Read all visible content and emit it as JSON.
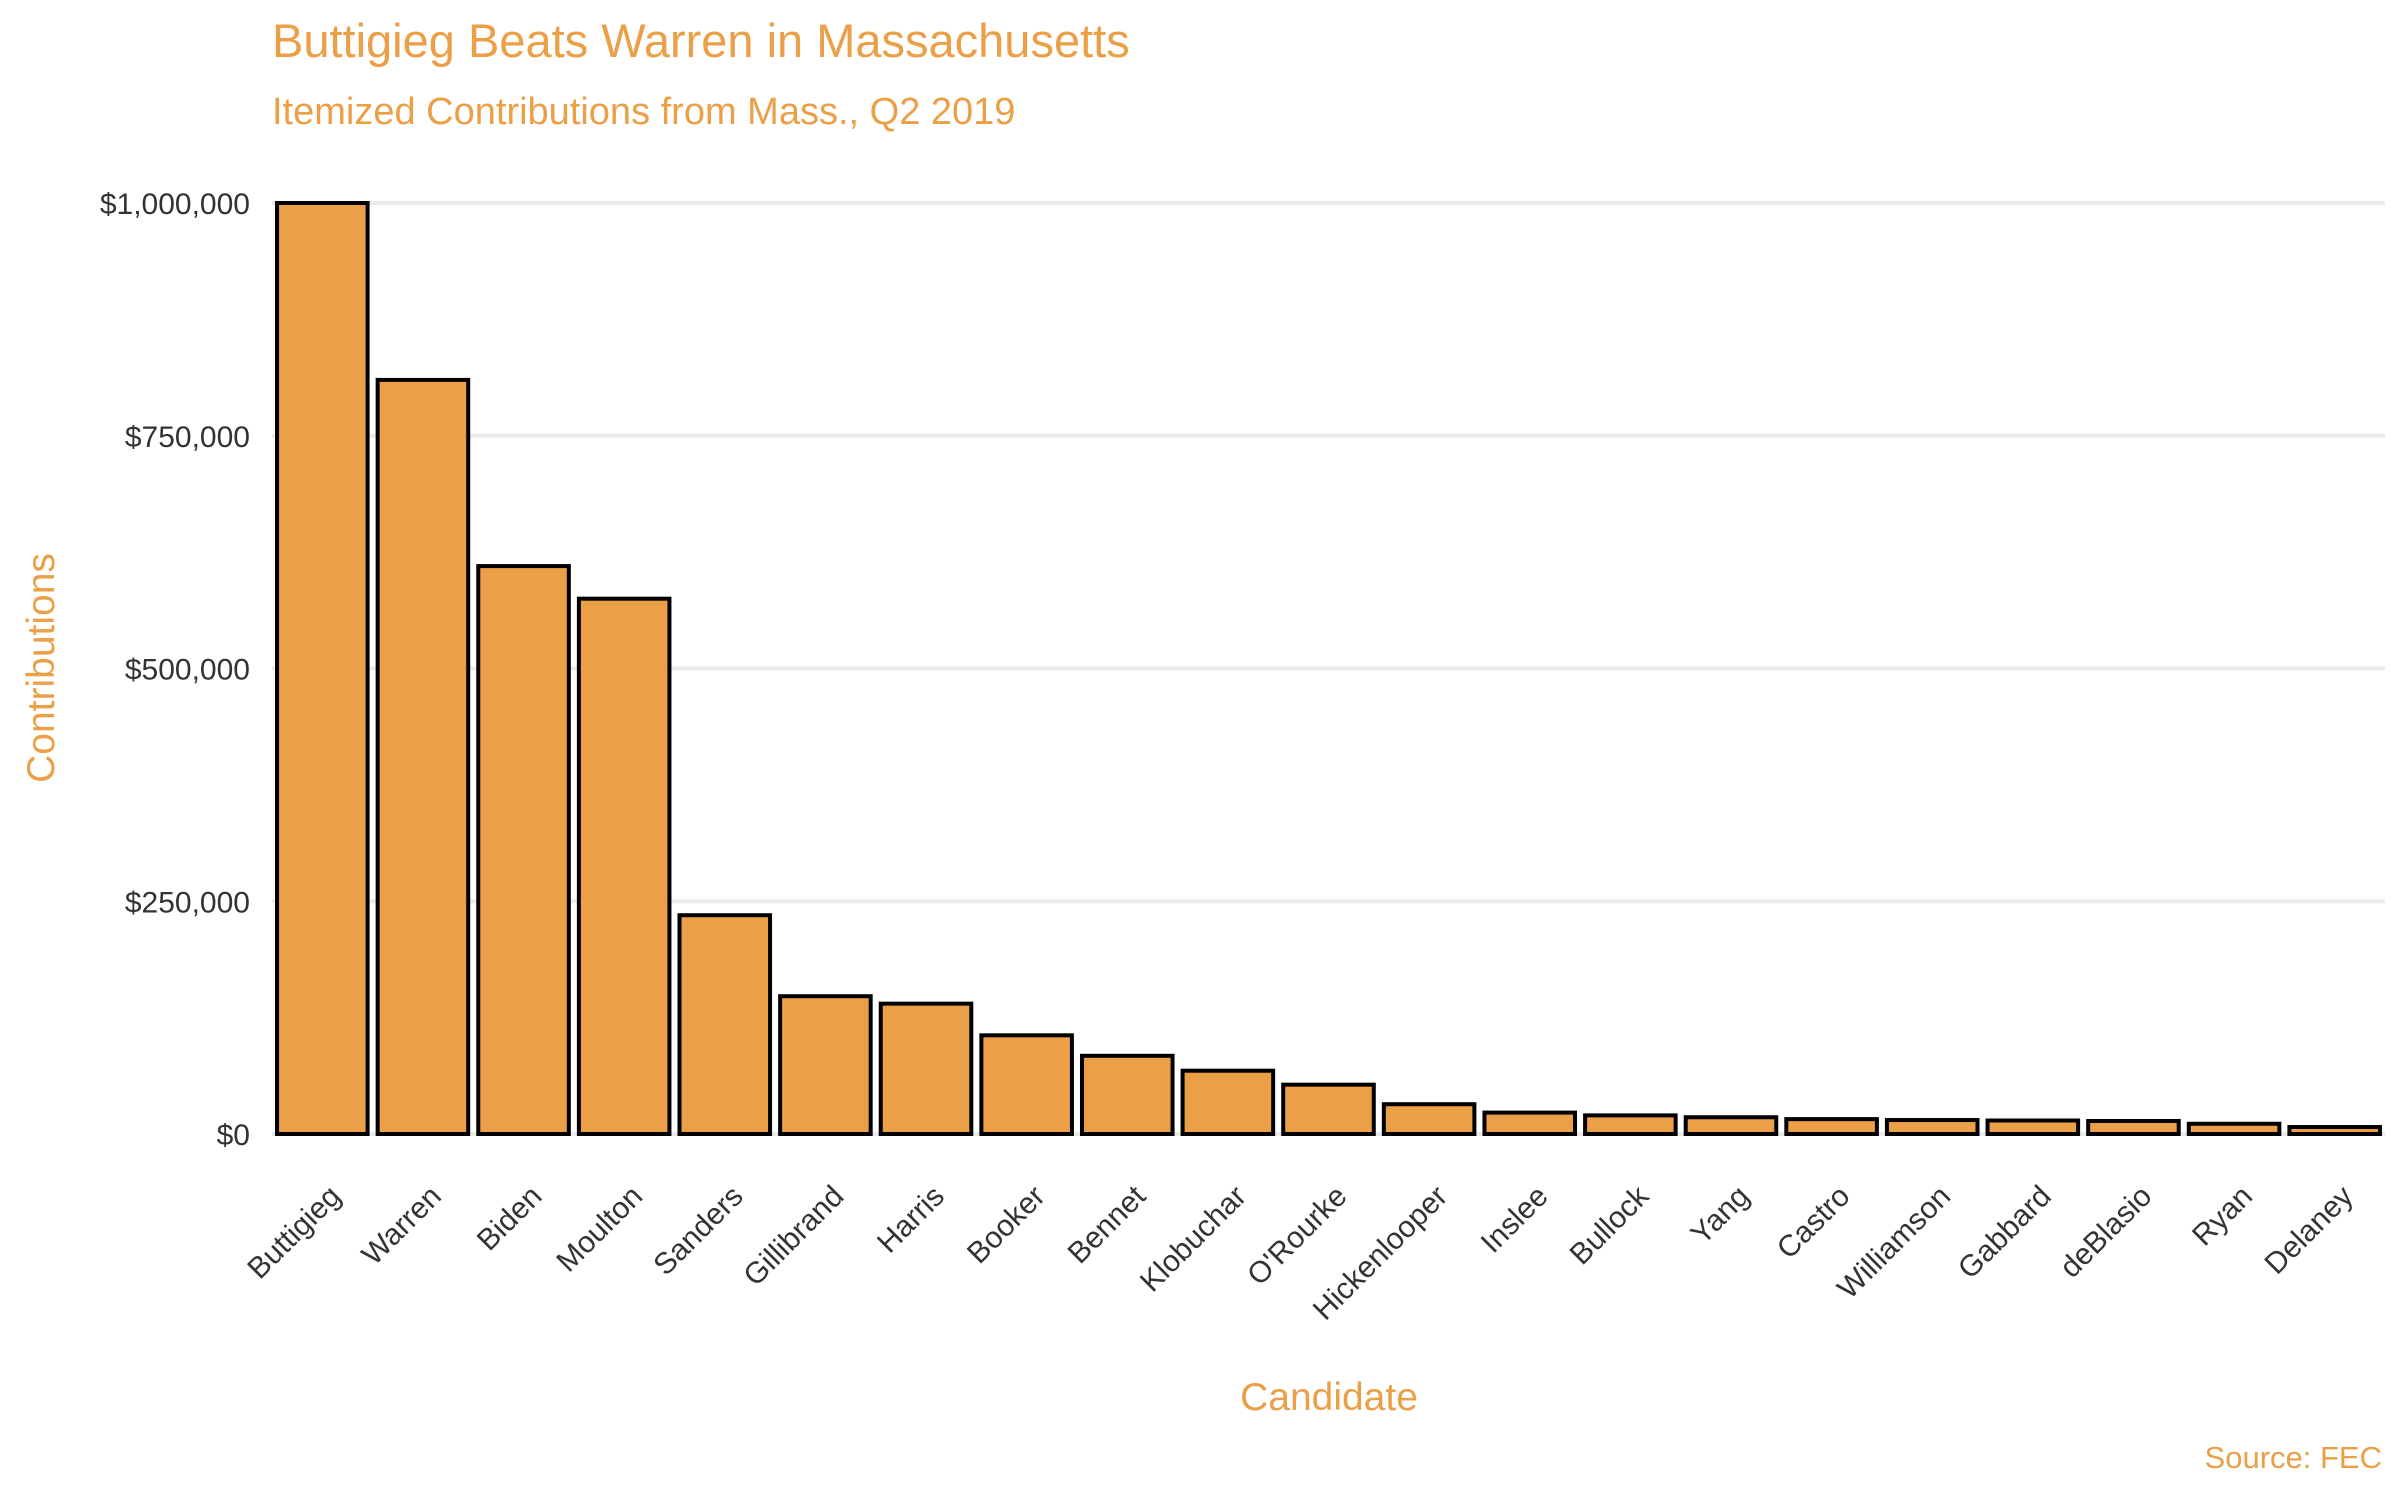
{
  "chart_data": {
    "type": "bar",
    "title": "Buttigieg Beats Warren in Massachusetts",
    "subtitle": "Itemized Contributions from Mass., Q2 2019",
    "xlabel": "Candidate",
    "ylabel": "Contributions",
    "caption": "Source: FEC",
    "categories": [
      "Buttigieg",
      "Warren",
      "Biden",
      "Moulton",
      "Sanders",
      "Gillibrand",
      "Harris",
      "Booker",
      "Bennet",
      "Klobuchar",
      "O'Rourke",
      "Hickenlooper",
      "Inslee",
      "Bullock",
      "Yang",
      "Castro",
      "Williamson",
      "Gabbard",
      "deBlasio",
      "Ryan",
      "Delaney"
    ],
    "values": [
      1000000,
      810000,
      610000,
      575000,
      235000,
      148000,
      140000,
      106000,
      84000,
      68000,
      53000,
      32000,
      23000,
      20000,
      18000,
      16000,
      15000,
      14500,
      14000,
      11000,
      7500
    ],
    "ylim": [
      0,
      1000000
    ],
    "yticks": [
      0,
      250000,
      500000,
      750000,
      1000000
    ],
    "ytick_labels": [
      "$0",
      "$250,000",
      "$500,000",
      "$750,000",
      "$1,000,000"
    ],
    "grid": true,
    "legend": "none",
    "colors": {
      "bar_fill": "#eb9f47",
      "bar_outline": "#000000",
      "text_accent": "#eb9f47"
    }
  }
}
